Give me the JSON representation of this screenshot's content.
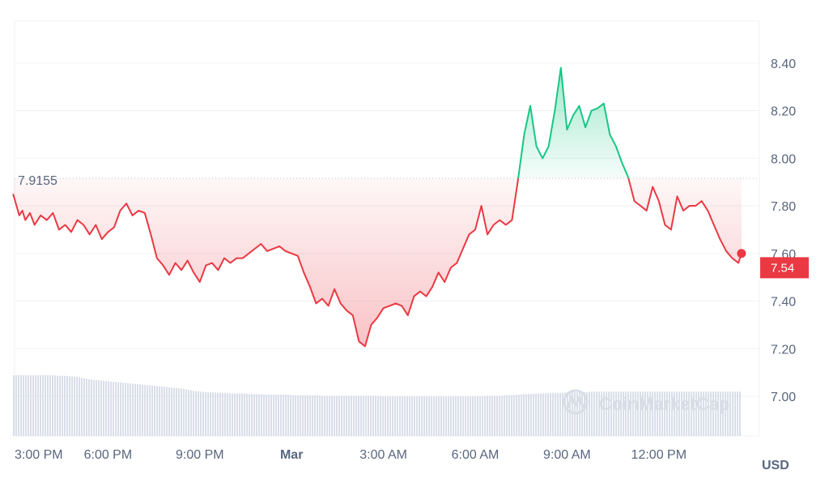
{
  "colors": {
    "up": "#16c784",
    "down": "#ea3943",
    "volume": "#cfd6e4",
    "grid": "#eff2f5",
    "axis_text": "#58667e",
    "current_badge": "#ea3943"
  },
  "watermark": {
    "text": "CoinMarketCap",
    "icon": "coinmarketcap-logo-icon"
  },
  "chart_data": {
    "type": "area",
    "x_axis": {
      "type": "time",
      "tick_labels": [
        "3:00 PM",
        "6:00 PM",
        "9:00 PM",
        "Mar",
        "3:00 AM",
        "6:00 AM",
        "9:00 AM",
        "12:00 PM"
      ],
      "tick_hours": [
        0,
        3,
        6,
        9,
        12,
        15,
        18,
        21
      ]
    },
    "y_axis": {
      "position": "right",
      "unit": "USD",
      "range": [
        6.85,
        8.55
      ],
      "ticks": [
        7.0,
        7.2,
        7.4,
        7.6,
        7.8,
        8.0,
        8.2,
        8.4
      ],
      "tick_labels": [
        "7.00",
        "7.20",
        "7.40",
        "7.60",
        "7.80",
        "8.00",
        "8.20",
        "8.40"
      ]
    },
    "reference_line": {
      "value": 7.9155,
      "label": "7.9155"
    },
    "current_price": {
      "value": 7.54,
      "label": "7.54"
    },
    "grid": {
      "horizontal": true,
      "vertical": false
    },
    "series": [
      {
        "hours": [
          -0.1,
          0.1,
          0.2,
          0.3,
          0.45,
          0.6,
          0.8,
          1.0,
          1.2,
          1.4,
          1.6,
          1.8,
          2.0,
          2.2,
          2.4,
          2.6,
          2.8,
          3.0,
          3.2,
          3.4,
          3.6,
          3.8,
          4.0,
          4.2,
          4.4,
          4.6,
          4.8,
          5.0,
          5.2,
          5.4,
          5.6,
          5.8,
          6.0,
          6.2,
          6.4,
          6.6,
          6.8,
          7.0,
          7.2,
          7.4,
          7.6,
          7.8,
          8.0,
          8.2,
          8.4,
          8.6,
          8.8,
          9.0,
          9.2,
          9.4,
          9.6,
          9.8,
          10.0,
          10.2,
          10.4,
          10.6,
          10.8,
          11.0,
          11.2,
          11.4,
          11.6,
          11.8,
          12.0,
          12.2,
          12.4,
          12.6,
          12.8,
          13.0,
          13.2,
          13.4,
          13.6,
          13.8,
          14.0,
          14.2,
          14.4,
          14.6,
          14.8,
          15.0,
          15.2,
          15.4,
          15.6,
          15.8,
          16.0,
          16.2,
          16.4,
          16.6,
          16.8,
          17.0,
          17.2,
          17.4,
          17.6,
          17.8,
          18.0,
          18.2,
          18.4,
          18.6,
          18.8,
          19.0,
          19.2,
          19.4,
          19.6,
          19.8,
          20.0,
          20.2,
          20.4,
          20.6,
          20.8,
          21.0,
          21.2,
          21.4,
          21.6,
          21.8,
          22.0,
          22.2,
          22.4,
          22.6,
          22.8,
          23.0,
          23.2,
          23.4,
          23.6,
          23.7
        ],
        "prices": [
          7.85,
          7.76,
          7.78,
          7.74,
          7.77,
          7.72,
          7.76,
          7.74,
          7.77,
          7.7,
          7.72,
          7.69,
          7.74,
          7.72,
          7.68,
          7.72,
          7.66,
          7.69,
          7.71,
          7.78,
          7.81,
          7.76,
          7.78,
          7.77,
          7.68,
          7.58,
          7.55,
          7.51,
          7.56,
          7.53,
          7.57,
          7.52,
          7.48,
          7.55,
          7.56,
          7.53,
          7.58,
          7.56,
          7.58,
          7.58,
          7.6,
          7.62,
          7.64,
          7.61,
          7.62,
          7.63,
          7.61,
          7.6,
          7.59,
          7.52,
          7.46,
          7.39,
          7.41,
          7.38,
          7.45,
          7.39,
          7.36,
          7.34,
          7.23,
          7.21,
          7.3,
          7.33,
          7.37,
          7.38,
          7.39,
          7.38,
          7.34,
          7.42,
          7.44,
          7.42,
          7.46,
          7.52,
          7.48,
          7.54,
          7.56,
          7.62,
          7.68,
          7.7,
          7.8,
          7.68,
          7.72,
          7.74,
          7.72,
          7.74,
          7.91,
          8.1,
          8.22,
          8.05,
          8.0,
          8.05,
          8.2,
          8.38,
          8.12,
          8.18,
          8.22,
          8.13,
          8.2,
          8.21,
          8.23,
          8.1,
          8.05,
          7.98,
          7.92,
          7.82,
          7.8,
          7.78,
          7.88,
          7.82,
          7.72,
          7.7,
          7.84,
          7.78,
          7.8,
          7.8,
          7.82,
          7.78,
          7.72,
          7.66,
          7.61,
          7.58,
          7.56,
          7.6,
          7.56,
          7.54
        ],
        "volume_relative": [
          1.0,
          1.0,
          1.0,
          1.0,
          1.0,
          1.0,
          1.0,
          1.0,
          1.0,
          0.99,
          0.99,
          0.98,
          0.97,
          0.95,
          0.93,
          0.92,
          0.91,
          0.9,
          0.89,
          0.88,
          0.87,
          0.86,
          0.85,
          0.84,
          0.83,
          0.82,
          0.81,
          0.8,
          0.79,
          0.78,
          0.76,
          0.74,
          0.73,
          0.72,
          0.72,
          0.71,
          0.71,
          0.7,
          0.7,
          0.7,
          0.69,
          0.69,
          0.69,
          0.68,
          0.68,
          0.68,
          0.68,
          0.67,
          0.67,
          0.67,
          0.67,
          0.67,
          0.66,
          0.66,
          0.66,
          0.66,
          0.66,
          0.66,
          0.66,
          0.66,
          0.66,
          0.66,
          0.65,
          0.65,
          0.65,
          0.65,
          0.65,
          0.65,
          0.65,
          0.65,
          0.65,
          0.65,
          0.65,
          0.65,
          0.65,
          0.65,
          0.65,
          0.65,
          0.65,
          0.66,
          0.66,
          0.66,
          0.67,
          0.67,
          0.68,
          0.69,
          0.69,
          0.7,
          0.7,
          0.71,
          0.71,
          0.71,
          0.72,
          0.72,
          0.72,
          0.72,
          0.73,
          0.73,
          0.73,
          0.73,
          0.73,
          0.73,
          0.73,
          0.73,
          0.73,
          0.73,
          0.73,
          0.73,
          0.73,
          0.73,
          0.73,
          0.73,
          0.73,
          0.73,
          0.73,
          0.73,
          0.73,
          0.73,
          0.73,
          0.73,
          0.73,
          0.73,
          0.73,
          0.73
        ]
      }
    ]
  }
}
